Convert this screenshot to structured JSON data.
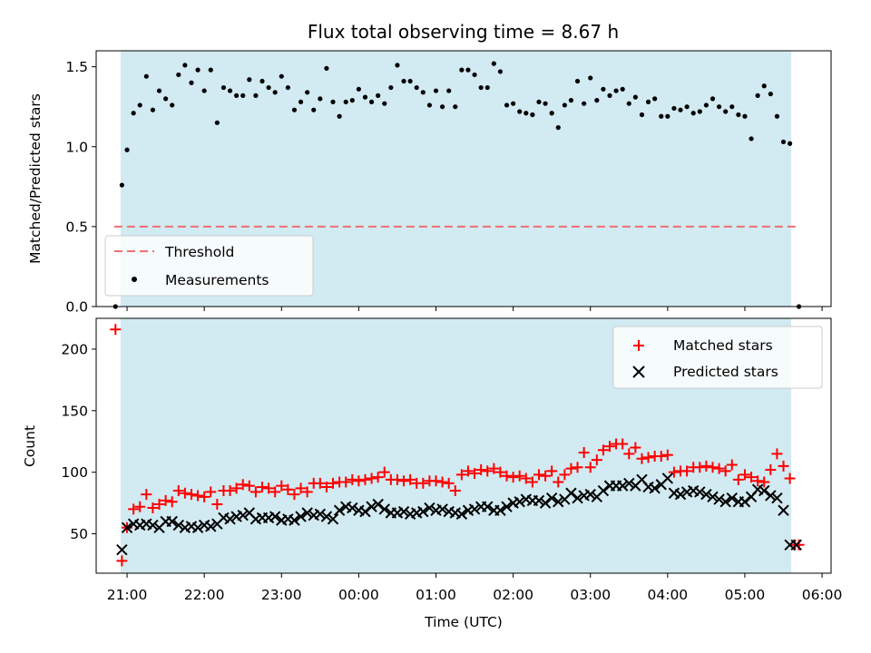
{
  "chart_data": {
    "title": "Flux total observing time = 8.67 h",
    "xlabel": "Time (UTC)",
    "x_ticks": [
      "21:00",
      "22:00",
      "23:00",
      "00:00",
      "01:00",
      "02:00",
      "03:00",
      "04:00",
      "05:00",
      "06:00"
    ],
    "x_start_label": "20:36",
    "x_end_label": "06:07",
    "shaded_span": {
      "from": "20:55",
      "to": "05:36",
      "color": "#add8e6"
    },
    "panels": [
      {
        "type": "scatter",
        "ylabel": "Matched/Predicted stars",
        "ylim": [
          0.0,
          1.6
        ],
        "y_ticks": [
          "0.0",
          "0.5",
          "1.0",
          "1.5"
        ],
        "legend": {
          "position": "lower left",
          "entries": [
            "Threshold",
            "Measurements"
          ]
        },
        "threshold": {
          "name": "Threshold",
          "value": 0.5,
          "from": "20:50",
          "to": "05:42",
          "color": "#f07070"
        },
        "series": [
          {
            "name": "Measurements",
            "color": "#000000",
            "x": [
              "20:51",
              "20:56",
              "21:00",
              "21:05",
              "21:10",
              "21:15",
              "21:20",
              "21:25",
              "21:30",
              "21:35",
              "21:40",
              "21:45",
              "21:50",
              "21:55",
              "22:00",
              "22:05",
              "22:10",
              "22:15",
              "22:20",
              "22:25",
              "22:30",
              "22:35",
              "22:40",
              "22:45",
              "22:50",
              "22:55",
              "23:00",
              "23:05",
              "23:10",
              "23:15",
              "23:20",
              "23:25",
              "23:30",
              "23:35",
              "23:40",
              "23:45",
              "23:50",
              "23:55",
              "00:00",
              "00:05",
              "00:10",
              "00:15",
              "00:20",
              "00:25",
              "00:30",
              "00:35",
              "00:40",
              "00:45",
              "00:50",
              "00:55",
              "01:00",
              "01:05",
              "01:10",
              "01:15",
              "01:20",
              "01:25",
              "01:30",
              "01:35",
              "01:40",
              "01:45",
              "01:50",
              "01:55",
              "02:00",
              "02:05",
              "02:10",
              "02:15",
              "02:20",
              "02:25",
              "02:30",
              "02:35",
              "02:40",
              "02:45",
              "02:50",
              "02:55",
              "03:00",
              "03:05",
              "03:10",
              "03:15",
              "03:20",
              "03:25",
              "03:30",
              "03:35",
              "03:40",
              "03:45",
              "03:50",
              "03:55",
              "04:00",
              "04:05",
              "04:10",
              "04:15",
              "04:20",
              "04:25",
              "04:30",
              "04:35",
              "04:40",
              "04:45",
              "04:50",
              "04:55",
              "05:00",
              "05:05",
              "05:10",
              "05:15",
              "05:20",
              "05:25",
              "05:30",
              "05:35",
              "05:42"
            ],
            "y": [
              0.0,
              0.76,
              0.98,
              1.21,
              1.26,
              1.44,
              1.23,
              1.35,
              1.3,
              1.26,
              1.45,
              1.51,
              1.4,
              1.48,
              1.35,
              1.48,
              1.15,
              1.37,
              1.35,
              1.32,
              1.32,
              1.42,
              1.32,
              1.41,
              1.37,
              1.34,
              1.44,
              1.37,
              1.23,
              1.28,
              1.34,
              1.23,
              1.3,
              1.49,
              1.28,
              1.19,
              1.28,
              1.29,
              1.36,
              1.31,
              1.28,
              1.32,
              1.27,
              1.37,
              1.51,
              1.41,
              1.41,
              1.37,
              1.34,
              1.26,
              1.35,
              1.25,
              1.35,
              1.25,
              1.48,
              1.48,
              1.45,
              1.37,
              1.37,
              1.52,
              1.47,
              1.26,
              1.27,
              1.22,
              1.21,
              1.2,
              1.28,
              1.27,
              1.21,
              1.12,
              1.26,
              1.29,
              1.41,
              1.27,
              1.43,
              1.29,
              1.36,
              1.32,
              1.35,
              1.36,
              1.27,
              1.31,
              1.2,
              1.28,
              1.3,
              1.19,
              1.19,
              1.24,
              1.23,
              1.25,
              1.21,
              1.22,
              1.26,
              1.3,
              1.25,
              1.22,
              1.25,
              1.2,
              1.19,
              1.05,
              1.32,
              1.38,
              1.33,
              1.19,
              1.03,
              1.02,
              0.0
            ]
          }
        ]
      },
      {
        "type": "scatter",
        "ylabel": "Count",
        "ylim": [
          18,
          225
        ],
        "y_ticks": [
          "50",
          "100",
          "150",
          "200"
        ],
        "legend": {
          "position": "upper right",
          "entries": [
            "Matched stars",
            "Predicted stars"
          ]
        },
        "series": [
          {
            "name": "Matched stars",
            "marker": "+",
            "color": "#ff0000",
            "x": [
              "20:51",
              "20:56",
              "21:00",
              "21:05",
              "21:10",
              "21:15",
              "21:20",
              "21:25",
              "21:30",
              "21:35",
              "21:40",
              "21:45",
              "21:50",
              "21:55",
              "22:00",
              "22:05",
              "22:10",
              "22:15",
              "22:20",
              "22:25",
              "22:30",
              "22:35",
              "22:40",
              "22:45",
              "22:50",
              "22:55",
              "23:00",
              "23:05",
              "23:10",
              "23:15",
              "23:20",
              "23:25",
              "23:30",
              "23:35",
              "23:40",
              "23:45",
              "23:50",
              "23:55",
              "00:00",
              "00:05",
              "00:10",
              "00:15",
              "00:20",
              "00:25",
              "00:30",
              "00:35",
              "00:40",
              "00:45",
              "00:50",
              "00:55",
              "01:00",
              "01:05",
              "01:10",
              "01:15",
              "01:20",
              "01:25",
              "01:30",
              "01:35",
              "01:40",
              "01:45",
              "01:50",
              "01:55",
              "02:00",
              "02:05",
              "02:10",
              "02:15",
              "02:20",
              "02:25",
              "02:30",
              "02:35",
              "02:40",
              "02:45",
              "02:50",
              "02:55",
              "03:00",
              "03:05",
              "03:10",
              "03:15",
              "03:20",
              "03:25",
              "03:30",
              "03:35",
              "03:40",
              "03:45",
              "03:50",
              "03:55",
              "04:00",
              "04:05",
              "04:10",
              "04:15",
              "04:20",
              "04:25",
              "04:30",
              "04:35",
              "04:40",
              "04:45",
              "04:50",
              "04:55",
              "05:00",
              "05:05",
              "05:10",
              "05:15",
              "05:20",
              "05:25",
              "05:30",
              "05:35",
              "05:39",
              "05:42"
            ],
            "y": [
              216,
              28,
              55,
              70,
              72,
              82,
              71,
              74,
              77,
              76,
              85,
              83,
              82,
              81,
              80,
              84,
              74,
              85,
              85,
              87,
              90,
              89,
              84,
              88,
              87,
              84,
              89,
              86,
              82,
              87,
              84,
              91,
              91,
              88,
              91,
              92,
              92,
              94,
              93,
              94,
              95,
              96,
              100,
              94,
              94,
              93,
              94,
              91,
              91,
              93,
              93,
              92,
              91,
              85,
              98,
              101,
              99,
              102,
              101,
              103,
              100,
              97,
              96,
              97,
              95,
              92,
              98,
              97,
              101,
              92,
              98,
              103,
              104,
              116,
              104,
              110,
              118,
              121,
              123,
              123,
              115,
              120,
              111,
              112,
              113,
              113,
              114,
              100,
              101,
              101,
              104,
              104,
              105,
              104,
              103,
              101,
              106,
              94,
              98,
              96,
              93,
              92,
              102,
              115,
              105,
              95,
              41,
              41
            ]
          },
          {
            "name": "Predicted stars",
            "marker": "x",
            "color": "#000000",
            "x": [
              "20:56",
              "21:00",
              "21:05",
              "21:10",
              "21:15",
              "21:20",
              "21:25",
              "21:30",
              "21:35",
              "21:40",
              "21:45",
              "21:50",
              "21:55",
              "22:00",
              "22:05",
              "22:10",
              "22:15",
              "22:20",
              "22:25",
              "22:30",
              "22:35",
              "22:40",
              "22:45",
              "22:50",
              "22:55",
              "23:00",
              "23:05",
              "23:10",
              "23:15",
              "23:20",
              "23:25",
              "23:30",
              "23:35",
              "23:40",
              "23:45",
              "23:50",
              "23:55",
              "00:00",
              "00:05",
              "00:10",
              "00:15",
              "00:20",
              "00:25",
              "00:30",
              "00:35",
              "00:40",
              "00:45",
              "00:50",
              "00:55",
              "01:00",
              "01:05",
              "01:10",
              "01:15",
              "01:20",
              "01:25",
              "01:30",
              "01:35",
              "01:40",
              "01:45",
              "01:50",
              "01:55",
              "02:00",
              "02:05",
              "02:10",
              "02:15",
              "02:20",
              "02:25",
              "02:30",
              "02:35",
              "02:40",
              "02:45",
              "02:50",
              "02:55",
              "03:00",
              "03:05",
              "03:10",
              "03:15",
              "03:20",
              "03:25",
              "03:30",
              "03:35",
              "03:40",
              "03:45",
              "03:50",
              "03:55",
              "04:00",
              "04:05",
              "04:10",
              "04:15",
              "04:20",
              "04:25",
              "04:30",
              "04:35",
              "04:40",
              "04:45",
              "04:50",
              "04:55",
              "05:00",
              "05:05",
              "05:10",
              "05:15",
              "05:20",
              "05:25",
              "05:30",
              "05:35",
              "05:40"
            ],
            "y": [
              37,
              55,
              58,
              57,
              58,
              57,
              55,
              60,
              60,
              57,
              55,
              56,
              55,
              57,
              56,
              58,
              63,
              62,
              64,
              65,
              67,
              62,
              63,
              63,
              64,
              61,
              62,
              61,
              64,
              67,
              65,
              66,
              64,
              62,
              69,
              72,
              71,
              69,
              68,
              72,
              74,
              70,
              67,
              67,
              68,
              66,
              67,
              68,
              71,
              69,
              70,
              68,
              67,
              66,
              69,
              70,
              72,
              72,
              69,
              69,
              72,
              75,
              76,
              78,
              77,
              77,
              75,
              79,
              76,
              78,
              83,
              79,
              81,
              82,
              80,
              85,
              89,
              89,
              89,
              91,
              89,
              94,
              88,
              87,
              90,
              95,
              83,
              82,
              84,
              85,
              84,
              82,
              80,
              78,
              76,
              79,
              76,
              76,
              80,
              86,
              85,
              81,
              79,
              69,
              41,
              41
            ]
          }
        ]
      }
    ]
  }
}
